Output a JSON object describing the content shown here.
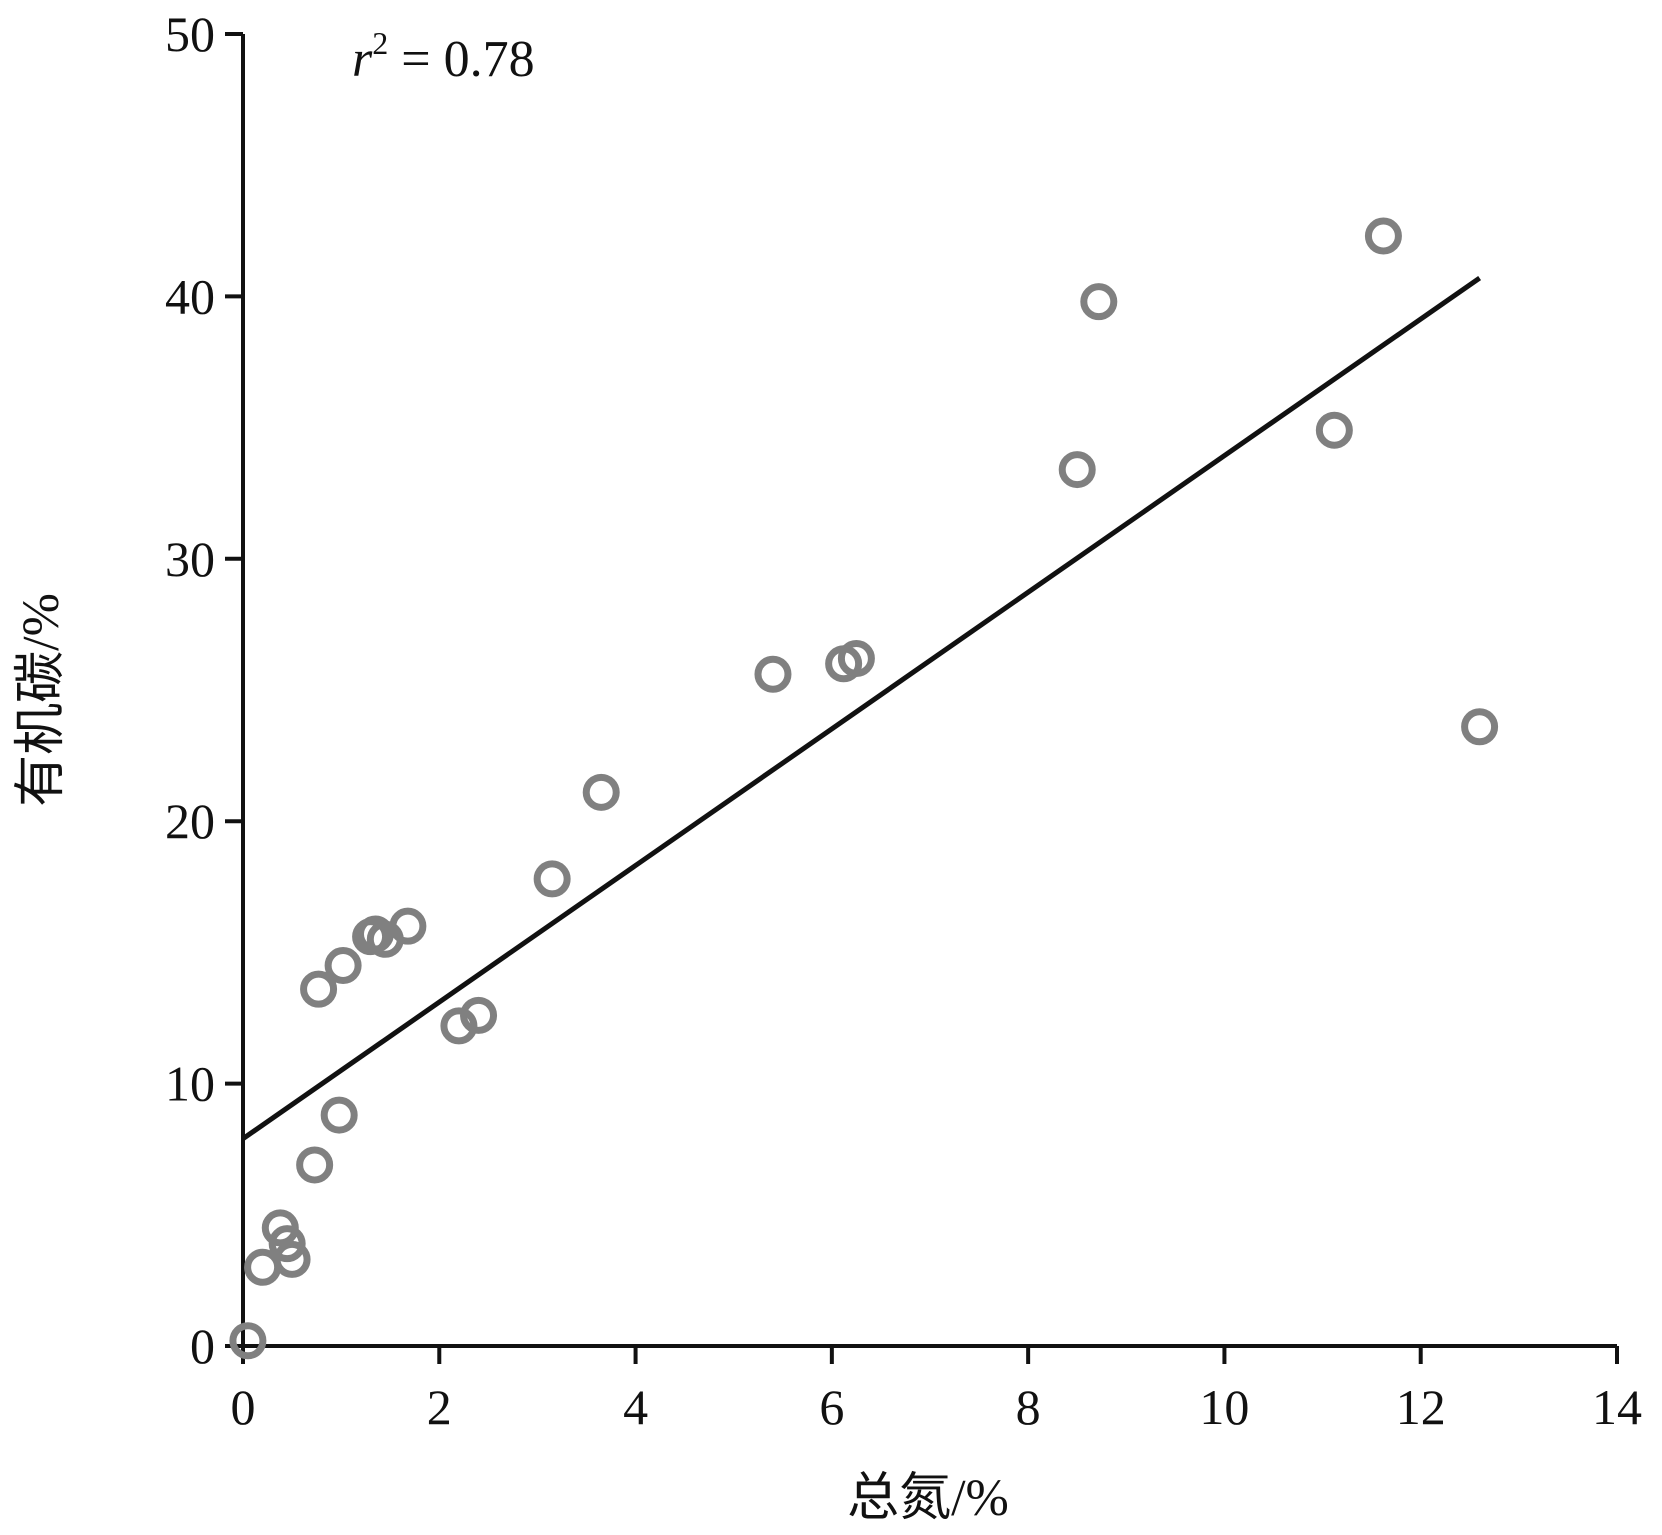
{
  "chart_data": {
    "type": "scatter",
    "title": "",
    "xlabel": "总氮/%",
    "ylabel": "有机碳/%",
    "xlim": [
      0,
      14
    ],
    "ylim": [
      0,
      50
    ],
    "xticks": [
      "0",
      "2",
      "4",
      "6",
      "8",
      "10",
      "12",
      "14"
    ],
    "yticks": [
      "0",
      "10",
      "20",
      "30",
      "40",
      "50"
    ],
    "grid": false,
    "legend": "none",
    "annotation": {
      "r2_symbol": "r",
      "r2_power": "2",
      "r2_text": " = 0.78"
    },
    "series": [
      {
        "marker": "open-circle",
        "color": "#808080",
        "points": [
          {
            "x": 0.05,
            "y": 0.2
          },
          {
            "x": 0.2,
            "y": 3.0
          },
          {
            "x": 0.38,
            "y": 4.5
          },
          {
            "x": 0.45,
            "y": 3.9
          },
          {
            "x": 0.5,
            "y": 3.3
          },
          {
            "x": 0.73,
            "y": 6.9
          },
          {
            "x": 0.77,
            "y": 13.6
          },
          {
            "x": 0.98,
            "y": 8.8
          },
          {
            "x": 1.02,
            "y": 14.5
          },
          {
            "x": 1.3,
            "y": 15.6
          },
          {
            "x": 1.35,
            "y": 15.7
          },
          {
            "x": 1.45,
            "y": 15.5
          },
          {
            "x": 1.68,
            "y": 16.0
          },
          {
            "x": 2.2,
            "y": 12.2
          },
          {
            "x": 2.4,
            "y": 12.6
          },
          {
            "x": 3.15,
            "y": 17.8
          },
          {
            "x": 3.65,
            "y": 21.1
          },
          {
            "x": 5.4,
            "y": 25.6
          },
          {
            "x": 6.12,
            "y": 26.0
          },
          {
            "x": 6.25,
            "y": 26.2
          },
          {
            "x": 8.5,
            "y": 33.4
          },
          {
            "x": 8.72,
            "y": 39.8
          },
          {
            "x": 11.12,
            "y": 34.9
          },
          {
            "x": 11.62,
            "y": 42.3
          },
          {
            "x": 12.6,
            "y": 23.6
          }
        ]
      }
    ],
    "fit_line": {
      "color": "#111111",
      "points": [
        {
          "x": 0.0,
          "y": 7.9
        },
        {
          "x": 12.6,
          "y": 40.7
        }
      ]
    }
  }
}
